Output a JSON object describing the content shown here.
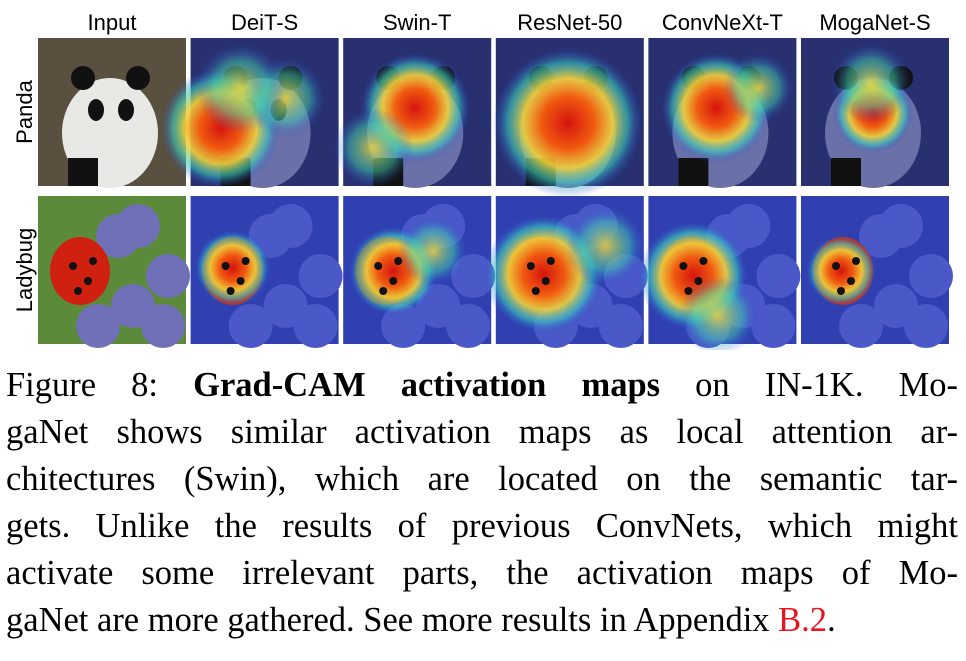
{
  "figure": {
    "columns": [
      "Input",
      "DeiT-S",
      "Swin-T",
      "ResNet-50",
      "ConvNeXt-T",
      "MogaNet-S"
    ],
    "rows": [
      "Panda",
      "Ladybug"
    ],
    "caption": {
      "lines": [
        [
          {
            "text": "Figure 8: ",
            "style": "normal"
          },
          {
            "text": "Grad-CAM activation maps",
            "style": "bold"
          },
          {
            "text": " on IN-1K. Mo-",
            "style": "normal"
          }
        ],
        [
          {
            "text": "gaNet shows similar activation maps as local attention ar-",
            "style": "normal"
          }
        ],
        [
          {
            "text": "chitectures (Swin), which are located on the semantic tar-",
            "style": "normal"
          }
        ],
        [
          {
            "text": "gets. Unlike the results of previous ConvNets, which might",
            "style": "normal"
          }
        ],
        [
          {
            "text": "activate some irrelevant parts, the activation maps of Mo-",
            "style": "normal"
          }
        ],
        [
          {
            "text": "gaNet are more gathered. See more results in Appendix ",
            "style": "normal"
          },
          {
            "text": "B.2",
            "style": "link"
          },
          {
            "text": ".",
            "style": "normal"
          }
        ]
      ]
    }
  }
}
